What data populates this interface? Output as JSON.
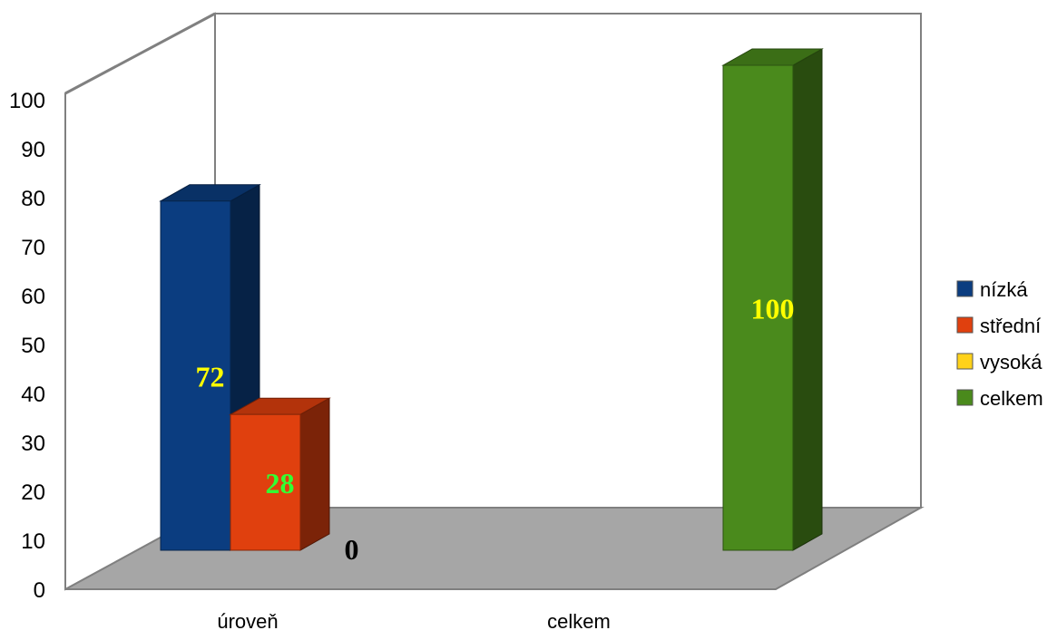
{
  "chart_data": {
    "type": "bar",
    "three_d": true,
    "categories": [
      "úroveň",
      "celkem"
    ],
    "series": [
      {
        "name": "nízká",
        "color": "#0b3d80",
        "values": [
          72,
          null
        ]
      },
      {
        "name": "střední",
        "color": "#e0400e",
        "values": [
          28,
          null
        ]
      },
      {
        "name": "vysoká",
        "color": "#ffd21a",
        "values": [
          0,
          null
        ]
      },
      {
        "name": "celkem",
        "color": "#4a8a1c",
        "values": [
          null,
          100
        ]
      }
    ],
    "data_labels": [
      {
        "series": 0,
        "category": 0,
        "text": "72",
        "color": "#ffff00"
      },
      {
        "series": 1,
        "category": 0,
        "text": "28",
        "color": "#33ff33"
      },
      {
        "series": 2,
        "category": 0,
        "text": "0",
        "color": "#000000"
      },
      {
        "series": 3,
        "category": 1,
        "text": "100",
        "color": "#ffff00"
      }
    ],
    "y_ticks": [
      "0",
      "10",
      "20",
      "30",
      "40",
      "50",
      "60",
      "70",
      "80",
      "90",
      "100"
    ],
    "ylim": [
      0,
      100
    ],
    "title": "",
    "xlabel": "",
    "ylabel": "",
    "legend": {
      "position": "right"
    },
    "grid": false
  }
}
